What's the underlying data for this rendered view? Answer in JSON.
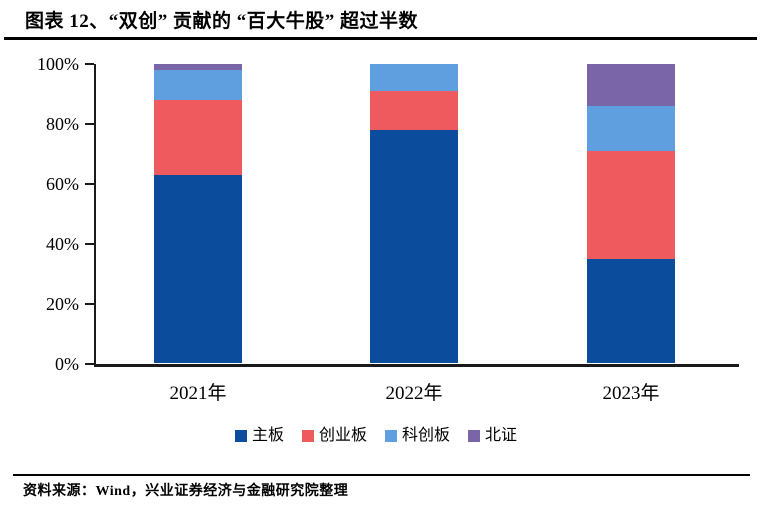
{
  "header": {
    "title": "图表 12、“双创” 贡献的 “百大牛股” 超过半数"
  },
  "chart_data": {
    "type": "bar",
    "stacked": true,
    "stacked_mode": "percent",
    "title": "图表 12、“双创” 贡献的 “百大牛股” 超过半数",
    "categories": [
      "2021年",
      "2022年",
      "2023年"
    ],
    "series": [
      {
        "name": "主板",
        "color": "#0B4C9C",
        "values": [
          63,
          78,
          35
        ]
      },
      {
        "name": "创业板",
        "color": "#EE5A5E",
        "values": [
          25,
          13,
          36
        ]
      },
      {
        "name": "科创板",
        "color": "#5F9FDF",
        "values": [
          10,
          9,
          15
        ]
      },
      {
        "name": "北证",
        "color": "#7A65A8",
        "values": [
          2,
          0,
          14
        ]
      }
    ],
    "xlabel": "",
    "ylabel": "",
    "ylim": [
      0,
      100
    ],
    "yticks": [
      {
        "value": 0,
        "label": "0%"
      },
      {
        "value": 20,
        "label": "20%"
      },
      {
        "value": 40,
        "label": "40%"
      },
      {
        "value": 60,
        "label": "60%"
      },
      {
        "value": 80,
        "label": "80%"
      },
      {
        "value": 100,
        "label": "100%"
      }
    ],
    "grid": false,
    "legend_position": "bottom"
  },
  "footer": {
    "source": "资料来源：Wind，兴业证券经济与金融研究院整理"
  }
}
